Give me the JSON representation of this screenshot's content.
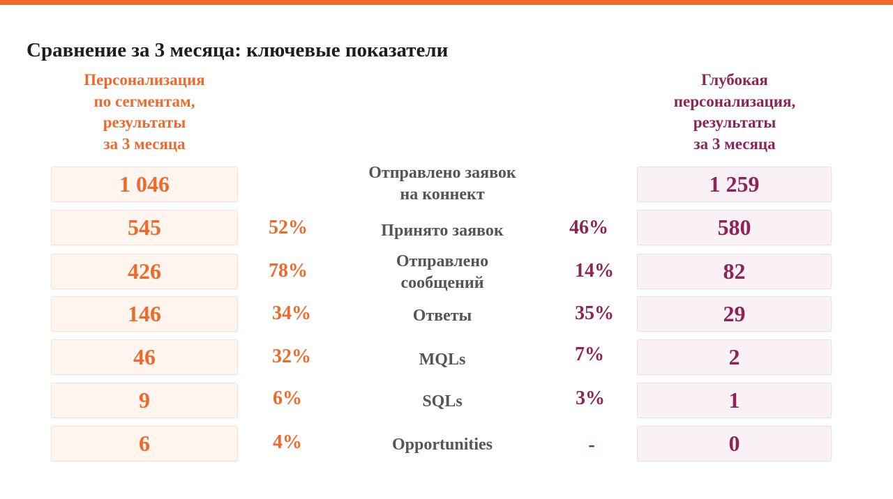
{
  "title": "Сравнение за 3 месяца: ключевые показатели",
  "colors": {
    "accent_orange": "#ee6a2c",
    "accent_plum": "#8e2359",
    "label_gray": "#555555"
  },
  "left_header": [
    "Персонализация",
    "по сегментам,",
    "результаты",
    "за 3 месяца"
  ],
  "right_header": [
    "Глубокая",
    "персонализация,",
    "результаты",
    "за 3 месяца"
  ],
  "rows": [
    {
      "metric": [
        "Отправлено заявок",
        "на коннект"
      ],
      "left_value": "1 046",
      "left_pct": "",
      "right_pct": "",
      "right_value": "1 259"
    },
    {
      "metric": [
        "Принято заявок"
      ],
      "left_value": "545",
      "left_pct": "52%",
      "right_pct": "46%",
      "right_value": "580"
    },
    {
      "metric": [
        "Отправлено",
        "сообщений"
      ],
      "left_value": "426",
      "left_pct": "78%",
      "right_pct": "14%",
      "right_value": "82"
    },
    {
      "metric": [
        "Ответы"
      ],
      "left_value": "146",
      "left_pct": "34%",
      "right_pct": "35%",
      "right_value": "29"
    },
    {
      "metric": [
        "MQLs"
      ],
      "left_value": "46",
      "left_pct": "32%",
      "right_pct": "7%",
      "right_value": "2"
    },
    {
      "metric": [
        "SQLs"
      ],
      "left_value": "9",
      "left_pct": "6%",
      "right_pct": "3%",
      "right_value": "1"
    },
    {
      "metric": [
        "Opportunities"
      ],
      "left_value": "6",
      "left_pct": "4%",
      "right_pct": "-",
      "right_value": "0"
    }
  ]
}
